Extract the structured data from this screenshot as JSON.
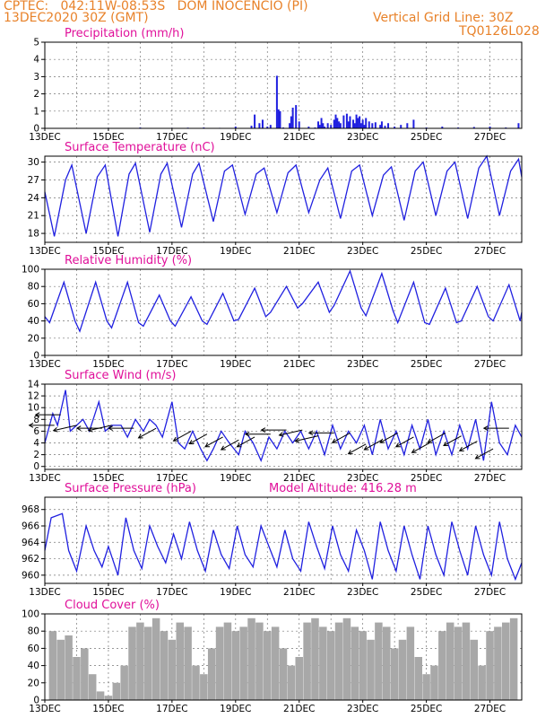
{
  "header": {
    "station_line": "CPTEC:   042:11W-08:53S   DOM INOCENCIO (PI)",
    "date_line": "13DEC2020 30Z (GMT)",
    "grid_line": "Vertical Grid Line: 30Z",
    "code": "TQ0126L028"
  },
  "colors": {
    "header": "#e8822a",
    "title": "#e0109a",
    "series": "#2020e0",
    "cloud": "#a8a8a8",
    "wind_arrow": "#000000"
  },
  "x_ticks": [
    "13DEC",
    "15DEC",
    "17DEC",
    "19DEC",
    "21DEC",
    "23DEC",
    "25DEC",
    "27DEC"
  ],
  "chart_data": [
    {
      "type": "bar",
      "title": "Precipitation (mm/h)",
      "ylim": [
        0,
        5
      ],
      "yticks": [
        0,
        1,
        2,
        3,
        4,
        5
      ],
      "x_unit": "days since 13DEC",
      "x": [
        0.5,
        1.0,
        1.5,
        2.0,
        2.5,
        3.0,
        3.5,
        4.0,
        4.5,
        5.0,
        5.5,
        6.0,
        6.5,
        6.6,
        6.75,
        6.85,
        7.0,
        7.1,
        7.3,
        7.35,
        7.4,
        7.5,
        7.7,
        7.75,
        7.8,
        7.9,
        8.0,
        8.3,
        8.5,
        8.6,
        8.65,
        8.7,
        8.75,
        8.8,
        8.9,
        9.0,
        9.1,
        9.15,
        9.2,
        9.25,
        9.3,
        9.4,
        9.5,
        9.55,
        9.6,
        9.7,
        9.75,
        9.8,
        9.85,
        9.9,
        9.95,
        10.0,
        10.05,
        10.1,
        10.2,
        10.3,
        10.4,
        10.55,
        10.6,
        10.7,
        10.8,
        11.0,
        11.2,
        11.4,
        11.6,
        12.0,
        12.5,
        13.0,
        13.5,
        14.0,
        14.5,
        14.9
      ],
      "values": [
        0.01,
        0.02,
        0.01,
        0.03,
        0.01,
        0.05,
        0.02,
        0.03,
        0.04,
        0.05,
        0.03,
        0.1,
        0.15,
        0.8,
        0.3,
        0.5,
        0.1,
        0.2,
        3.05,
        1.1,
        1.0,
        0.05,
        0.3,
        0.7,
        1.2,
        1.35,
        0.4,
        0.1,
        0.05,
        0.4,
        0.2,
        0.6,
        0.3,
        0.1,
        0.3,
        0.2,
        0.5,
        0.8,
        0.6,
        0.4,
        0.3,
        0.75,
        0.85,
        0.4,
        0.7,
        0.5,
        0.3,
        0.8,
        0.6,
        0.7,
        0.3,
        0.5,
        0.2,
        0.6,
        0.4,
        0.3,
        0.35,
        0.2,
        0.4,
        0.15,
        0.3,
        0.1,
        0.2,
        0.3,
        0.5,
        0.05,
        0.1,
        0.05,
        0.08,
        0.1,
        0.05,
        0.3
      ]
    },
    {
      "type": "line",
      "title": "Surface Temperature (nC)",
      "ylim": [
        16.5,
        31
      ],
      "yticks": [
        18,
        21,
        24,
        27,
        30
      ],
      "x_unit": "days since 13DEC",
      "x": [
        0,
        0.3,
        0.65,
        0.85,
        1.3,
        1.65,
        1.9,
        2.3,
        2.65,
        2.85,
        3.3,
        3.65,
        3.85,
        4.3,
        4.65,
        4.85,
        5.3,
        5.65,
        5.9,
        6.3,
        6.65,
        6.9,
        7.3,
        7.65,
        7.9,
        8.3,
        8.65,
        8.9,
        9.3,
        9.65,
        9.9,
        10.3,
        10.65,
        10.9,
        11.3,
        11.65,
        11.9,
        12.3,
        12.65,
        12.9,
        13.3,
        13.65,
        13.9,
        14.3,
        14.65,
        14.9,
        15
      ],
      "values": [
        25,
        17.5,
        27,
        29.5,
        18,
        27.5,
        29.5,
        17.5,
        28,
        29.8,
        18.2,
        28,
        29.8,
        19,
        28,
        29.8,
        20,
        28.5,
        29.5,
        21.2,
        28,
        29,
        21.5,
        28.2,
        29.5,
        21.5,
        27,
        29,
        20.5,
        28.5,
        29.5,
        21,
        27.8,
        29.2,
        20.2,
        28.5,
        30,
        21,
        28.5,
        30,
        20.5,
        29,
        31,
        21,
        28.5,
        30.5,
        27.5
      ]
    },
    {
      "type": "line",
      "title": "Relative Humidity (%)",
      "ylim": [
        0,
        100
      ],
      "yticks": [
        0,
        20,
        40,
        60,
        80,
        100
      ],
      "x_unit": "days since 13DEC",
      "x": [
        0,
        0.15,
        0.6,
        0.95,
        1.1,
        1.6,
        1.95,
        2.1,
        2.6,
        2.95,
        3.1,
        3.6,
        3.95,
        4.1,
        4.6,
        4.95,
        5.1,
        5.6,
        5.95,
        6.1,
        6.6,
        6.95,
        7.1,
        7.6,
        7.95,
        8.1,
        8.6,
        8.95,
        9.1,
        9.6,
        9.95,
        10.1,
        10.6,
        10.95,
        11.1,
        11.6,
        11.95,
        12.1,
        12.6,
        12.95,
        13.1,
        13.6,
        13.95,
        14.1,
        14.6,
        14.95,
        15
      ],
      "values": [
        45,
        38,
        85,
        40,
        28,
        85,
        40,
        32,
        85,
        38,
        34,
        70,
        40,
        34,
        68,
        40,
        36,
        72,
        40,
        42,
        78,
        45,
        50,
        80,
        55,
        60,
        85,
        50,
        58,
        98,
        55,
        46,
        95,
        52,
        38,
        85,
        38,
        36,
        78,
        38,
        40,
        80,
        45,
        40,
        82,
        40,
        50
      ]
    },
    {
      "type": "line",
      "title": "Surface Wind (m/s)",
      "ylim": [
        -0.5,
        14
      ],
      "yticks": [
        0,
        2,
        4,
        6,
        8,
        10,
        12,
        14
      ],
      "x_unit": "days since 13DEC",
      "x": [
        0,
        0.25,
        0.4,
        0.65,
        0.8,
        1.0,
        1.2,
        1.4,
        1.7,
        1.9,
        2.1,
        2.4,
        2.6,
        2.85,
        3.1,
        3.3,
        3.5,
        3.7,
        4.0,
        4.2,
        4.4,
        4.65,
        4.9,
        5.1,
        5.3,
        5.55,
        5.8,
        6.1,
        6.3,
        6.55,
        6.8,
        7.05,
        7.3,
        7.55,
        7.8,
        8.05,
        8.3,
        8.55,
        8.8,
        9.05,
        9.3,
        9.55,
        9.8,
        10.05,
        10.3,
        10.55,
        10.8,
        11.05,
        11.3,
        11.55,
        11.8,
        12.05,
        12.3,
        12.55,
        12.8,
        13.05,
        13.3,
        13.55,
        13.8,
        14.05,
        14.3,
        14.55,
        14.8,
        15
      ],
      "values": [
        4,
        9,
        7,
        13,
        6,
        7,
        8,
        6,
        11,
        6,
        7,
        7,
        5,
        8,
        6,
        8,
        7,
        5,
        11,
        4,
        3,
        6,
        3,
        1,
        3,
        6,
        4,
        2,
        6,
        4,
        1,
        5,
        3,
        6,
        4,
        6,
        3,
        6,
        2,
        7,
        3,
        6,
        4,
        7,
        2,
        8,
        3,
        6,
        2,
        7,
        3,
        8,
        2,
        6,
        2,
        7,
        3,
        8,
        1,
        11,
        4,
        2,
        7,
        5
      ],
      "wind_arrows": [
        {
          "x": 0.3,
          "y": 7,
          "dir": "w"
        },
        {
          "x": 0.5,
          "y": 8.8,
          "dir": "w"
        },
        {
          "x": 1.0,
          "y": 7,
          "dir": "wsw"
        },
        {
          "x": 1.8,
          "y": 6.5,
          "dir": "w"
        },
        {
          "x": 2.1,
          "y": 7,
          "dir": "wsw"
        },
        {
          "x": 2.8,
          "y": 6.5,
          "dir": "w"
        },
        {
          "x": 3.5,
          "y": 6.5,
          "dir": "sw"
        },
        {
          "x": 4.6,
          "y": 6,
          "dir": "sw"
        },
        {
          "x": 5.1,
          "y": 5.5,
          "dir": "sw"
        },
        {
          "x": 5.6,
          "y": 5,
          "dir": "sw"
        },
        {
          "x": 6.1,
          "y": 4.5,
          "dir": "sw"
        },
        {
          "x": 6.6,
          "y": 5,
          "dir": "sw"
        },
        {
          "x": 7.1,
          "y": 5.5,
          "dir": "w"
        },
        {
          "x": 7.6,
          "y": 6.2,
          "dir": "w"
        },
        {
          "x": 8.1,
          "y": 6.2,
          "dir": "wsw"
        },
        {
          "x": 8.6,
          "y": 5.2,
          "dir": "wsw"
        },
        {
          "x": 9.1,
          "y": 5.7,
          "dir": "w"
        },
        {
          "x": 9.6,
          "y": 5.7,
          "dir": "sw"
        },
        {
          "x": 10.1,
          "y": 3.8,
          "dir": "sw"
        },
        {
          "x": 10.6,
          "y": 4.5,
          "dir": "sw"
        },
        {
          "x": 11.1,
          "y": 5.7,
          "dir": "sw"
        },
        {
          "x": 11.6,
          "y": 5,
          "dir": "sw"
        },
        {
          "x": 12.1,
          "y": 4,
          "dir": "sw"
        },
        {
          "x": 12.6,
          "y": 5.7,
          "dir": "sw"
        },
        {
          "x": 13.1,
          "y": 5.2,
          "dir": "sw"
        },
        {
          "x": 13.6,
          "y": 4.3,
          "dir": "sw"
        },
        {
          "x": 14.1,
          "y": 3,
          "dir": "sw"
        },
        {
          "x": 14.6,
          "y": 6.5,
          "dir": "w"
        }
      ]
    },
    {
      "type": "line",
      "title": "Surface Pressure (hPa)",
      "subtitle": "Model Altitude: 416.28 m",
      "ylim": [
        959,
        969.5
      ],
      "yticks": [
        960,
        962,
        964,
        966,
        968
      ],
      "x_unit": "days since 13DEC",
      "x": [
        0,
        0.2,
        0.55,
        0.75,
        1.0,
        1.3,
        1.55,
        1.8,
        2.0,
        2.3,
        2.55,
        2.8,
        3.05,
        3.3,
        3.55,
        3.8,
        4.05,
        4.3,
        4.55,
        4.8,
        5.05,
        5.3,
        5.55,
        5.8,
        6.05,
        6.3,
        6.55,
        6.8,
        7.05,
        7.3,
        7.55,
        7.8,
        8.05,
        8.3,
        8.55,
        8.8,
        9.05,
        9.3,
        9.55,
        9.8,
        10.05,
        10.3,
        10.55,
        10.8,
        11.05,
        11.3,
        11.55,
        11.8,
        12.05,
        12.3,
        12.55,
        12.8,
        13.05,
        13.3,
        13.55,
        13.8,
        14.05,
        14.3,
        14.55,
        14.8,
        15
      ],
      "values": [
        963,
        967,
        967.5,
        963,
        960.5,
        966,
        963,
        961,
        963.5,
        960,
        967,
        963,
        960.8,
        966,
        963.5,
        961.5,
        965,
        962,
        966.5,
        963,
        960.5,
        965.5,
        962.5,
        960.8,
        966,
        962.5,
        961,
        966,
        963.5,
        961,
        965.5,
        962,
        960.5,
        966.5,
        963.5,
        960.8,
        966,
        962.5,
        960.5,
        965.5,
        963,
        959.5,
        966.5,
        963,
        960.5,
        966,
        962.5,
        959.5,
        966,
        962.5,
        960,
        966.5,
        963,
        960,
        966,
        962.5,
        960,
        966.5,
        962,
        959.5,
        961.5
      ]
    },
    {
      "type": "bar",
      "title": "Cloud Cover (%)",
      "ylim": [
        0,
        100
      ],
      "yticks": [
        0,
        20,
        40,
        60,
        80,
        100
      ],
      "x_unit": "days since 13DEC",
      "x": [
        0.25,
        0.5,
        0.75,
        1.0,
        1.25,
        1.5,
        1.75,
        2.0,
        2.25,
        2.5,
        2.75,
        3.0,
        3.25,
        3.5,
        3.75,
        4.0,
        4.25,
        4.5,
        4.75,
        5.0,
        5.25,
        5.5,
        5.75,
        6.0,
        6.25,
        6.5,
        6.75,
        7.0,
        7.25,
        7.5,
        7.75,
        8.0,
        8.25,
        8.5,
        8.75,
        9.0,
        9.25,
        9.5,
        9.75,
        10.0,
        10.25,
        10.5,
        10.75,
        11.0,
        11.25,
        11.5,
        11.75,
        12.0,
        12.25,
        12.5,
        12.75,
        13.0,
        13.25,
        13.5,
        13.75,
        14.0,
        14.25,
        14.5,
        14.75
      ],
      "values": [
        80,
        70,
        75,
        50,
        60,
        30,
        10,
        5,
        20,
        40,
        85,
        90,
        85,
        95,
        80,
        70,
        90,
        85,
        40,
        30,
        60,
        85,
        90,
        80,
        85,
        95,
        90,
        80,
        85,
        60,
        40,
        50,
        90,
        95,
        85,
        80,
        90,
        95,
        85,
        80,
        70,
        90,
        85,
        60,
        70,
        85,
        50,
        30,
        40,
        80,
        90,
        85,
        90,
        70,
        40,
        80,
        85,
        90,
        95
      ]
    }
  ]
}
